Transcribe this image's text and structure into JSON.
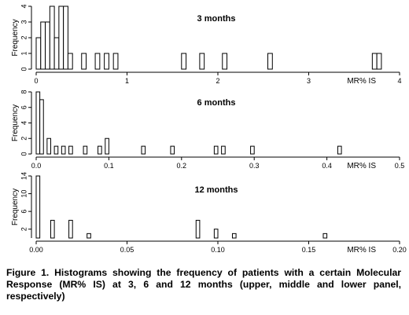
{
  "chart_data": [
    {
      "type": "bar",
      "title": "3 months",
      "xlabel": "MR% IS",
      "ylabel": "Frequency",
      "bin_width": 0.05,
      "xlim": [
        0,
        4
      ],
      "ylim": [
        0,
        4
      ],
      "x_ticks": [
        "0",
        "1",
        "2",
        "3",
        "4"
      ],
      "y_ticks": [
        "0",
        "1",
        "2",
        "3",
        "4"
      ],
      "bins": [
        {
          "x": 0.0,
          "count": 2
        },
        {
          "x": 0.05,
          "count": 3
        },
        {
          "x": 0.1,
          "count": 3
        },
        {
          "x": 0.15,
          "count": 4
        },
        {
          "x": 0.2,
          "count": 2
        },
        {
          "x": 0.25,
          "count": 4
        },
        {
          "x": 0.3,
          "count": 4
        },
        {
          "x": 0.35,
          "count": 1
        },
        {
          "x": 0.5,
          "count": 1
        },
        {
          "x": 0.65,
          "count": 1
        },
        {
          "x": 0.75,
          "count": 1
        },
        {
          "x": 0.85,
          "count": 1
        },
        {
          "x": 1.6,
          "count": 1
        },
        {
          "x": 1.8,
          "count": 1
        },
        {
          "x": 2.05,
          "count": 1
        },
        {
          "x": 2.55,
          "count": 1
        },
        {
          "x": 3.7,
          "count": 1
        },
        {
          "x": 3.75,
          "count": 1
        }
      ]
    },
    {
      "type": "bar",
      "title": "6 months",
      "xlabel": "MR% IS",
      "ylabel": "Frequency",
      "bin_width": 0.005,
      "xlim": [
        0,
        0.5
      ],
      "ylim": [
        0,
        8
      ],
      "x_ticks": [
        "0.0",
        "0.1",
        "0.2",
        "0.3",
        "0.4",
        "0.5"
      ],
      "y_ticks": [
        "0",
        "2",
        "4",
        "6",
        "8"
      ],
      "bins": [
        {
          "x": 0.0,
          "count": 8
        },
        {
          "x": 0.005,
          "count": 7
        },
        {
          "x": 0.015,
          "count": 2
        },
        {
          "x": 0.025,
          "count": 1
        },
        {
          "x": 0.035,
          "count": 1
        },
        {
          "x": 0.045,
          "count": 1
        },
        {
          "x": 0.065,
          "count": 1
        },
        {
          "x": 0.085,
          "count": 1
        },
        {
          "x": 0.095,
          "count": 2
        },
        {
          "x": 0.145,
          "count": 1
        },
        {
          "x": 0.185,
          "count": 1
        },
        {
          "x": 0.245,
          "count": 1
        },
        {
          "x": 0.255,
          "count": 1
        },
        {
          "x": 0.295,
          "count": 1
        },
        {
          "x": 0.415,
          "count": 1
        }
      ]
    },
    {
      "type": "bar",
      "title": "12 months",
      "xlabel": "MR% IS",
      "ylabel": "Frequency",
      "bin_width": 0.002,
      "xlim": [
        0,
        0.2
      ],
      "ylim": [
        0,
        14
      ],
      "x_ticks": [
        "0.00",
        "0.05",
        "0.10",
        "0.15",
        "0.20"
      ],
      "y_ticks": [
        "2",
        "6",
        "10",
        "14"
      ],
      "bins": [
        {
          "x": 0.0,
          "count": 14
        },
        {
          "x": 0.008,
          "count": 4
        },
        {
          "x": 0.018,
          "count": 4
        },
        {
          "x": 0.028,
          "count": 1
        },
        {
          "x": 0.088,
          "count": 4
        },
        {
          "x": 0.098,
          "count": 2
        },
        {
          "x": 0.108,
          "count": 1
        },
        {
          "x": 0.158,
          "count": 1
        }
      ]
    }
  ],
  "caption": "Figure 1. Histograms showing the frequency of patients with a certain Molecular Response (MR% IS) at 3, 6 and 12 months (upper, middle and lower panel, respectively)"
}
